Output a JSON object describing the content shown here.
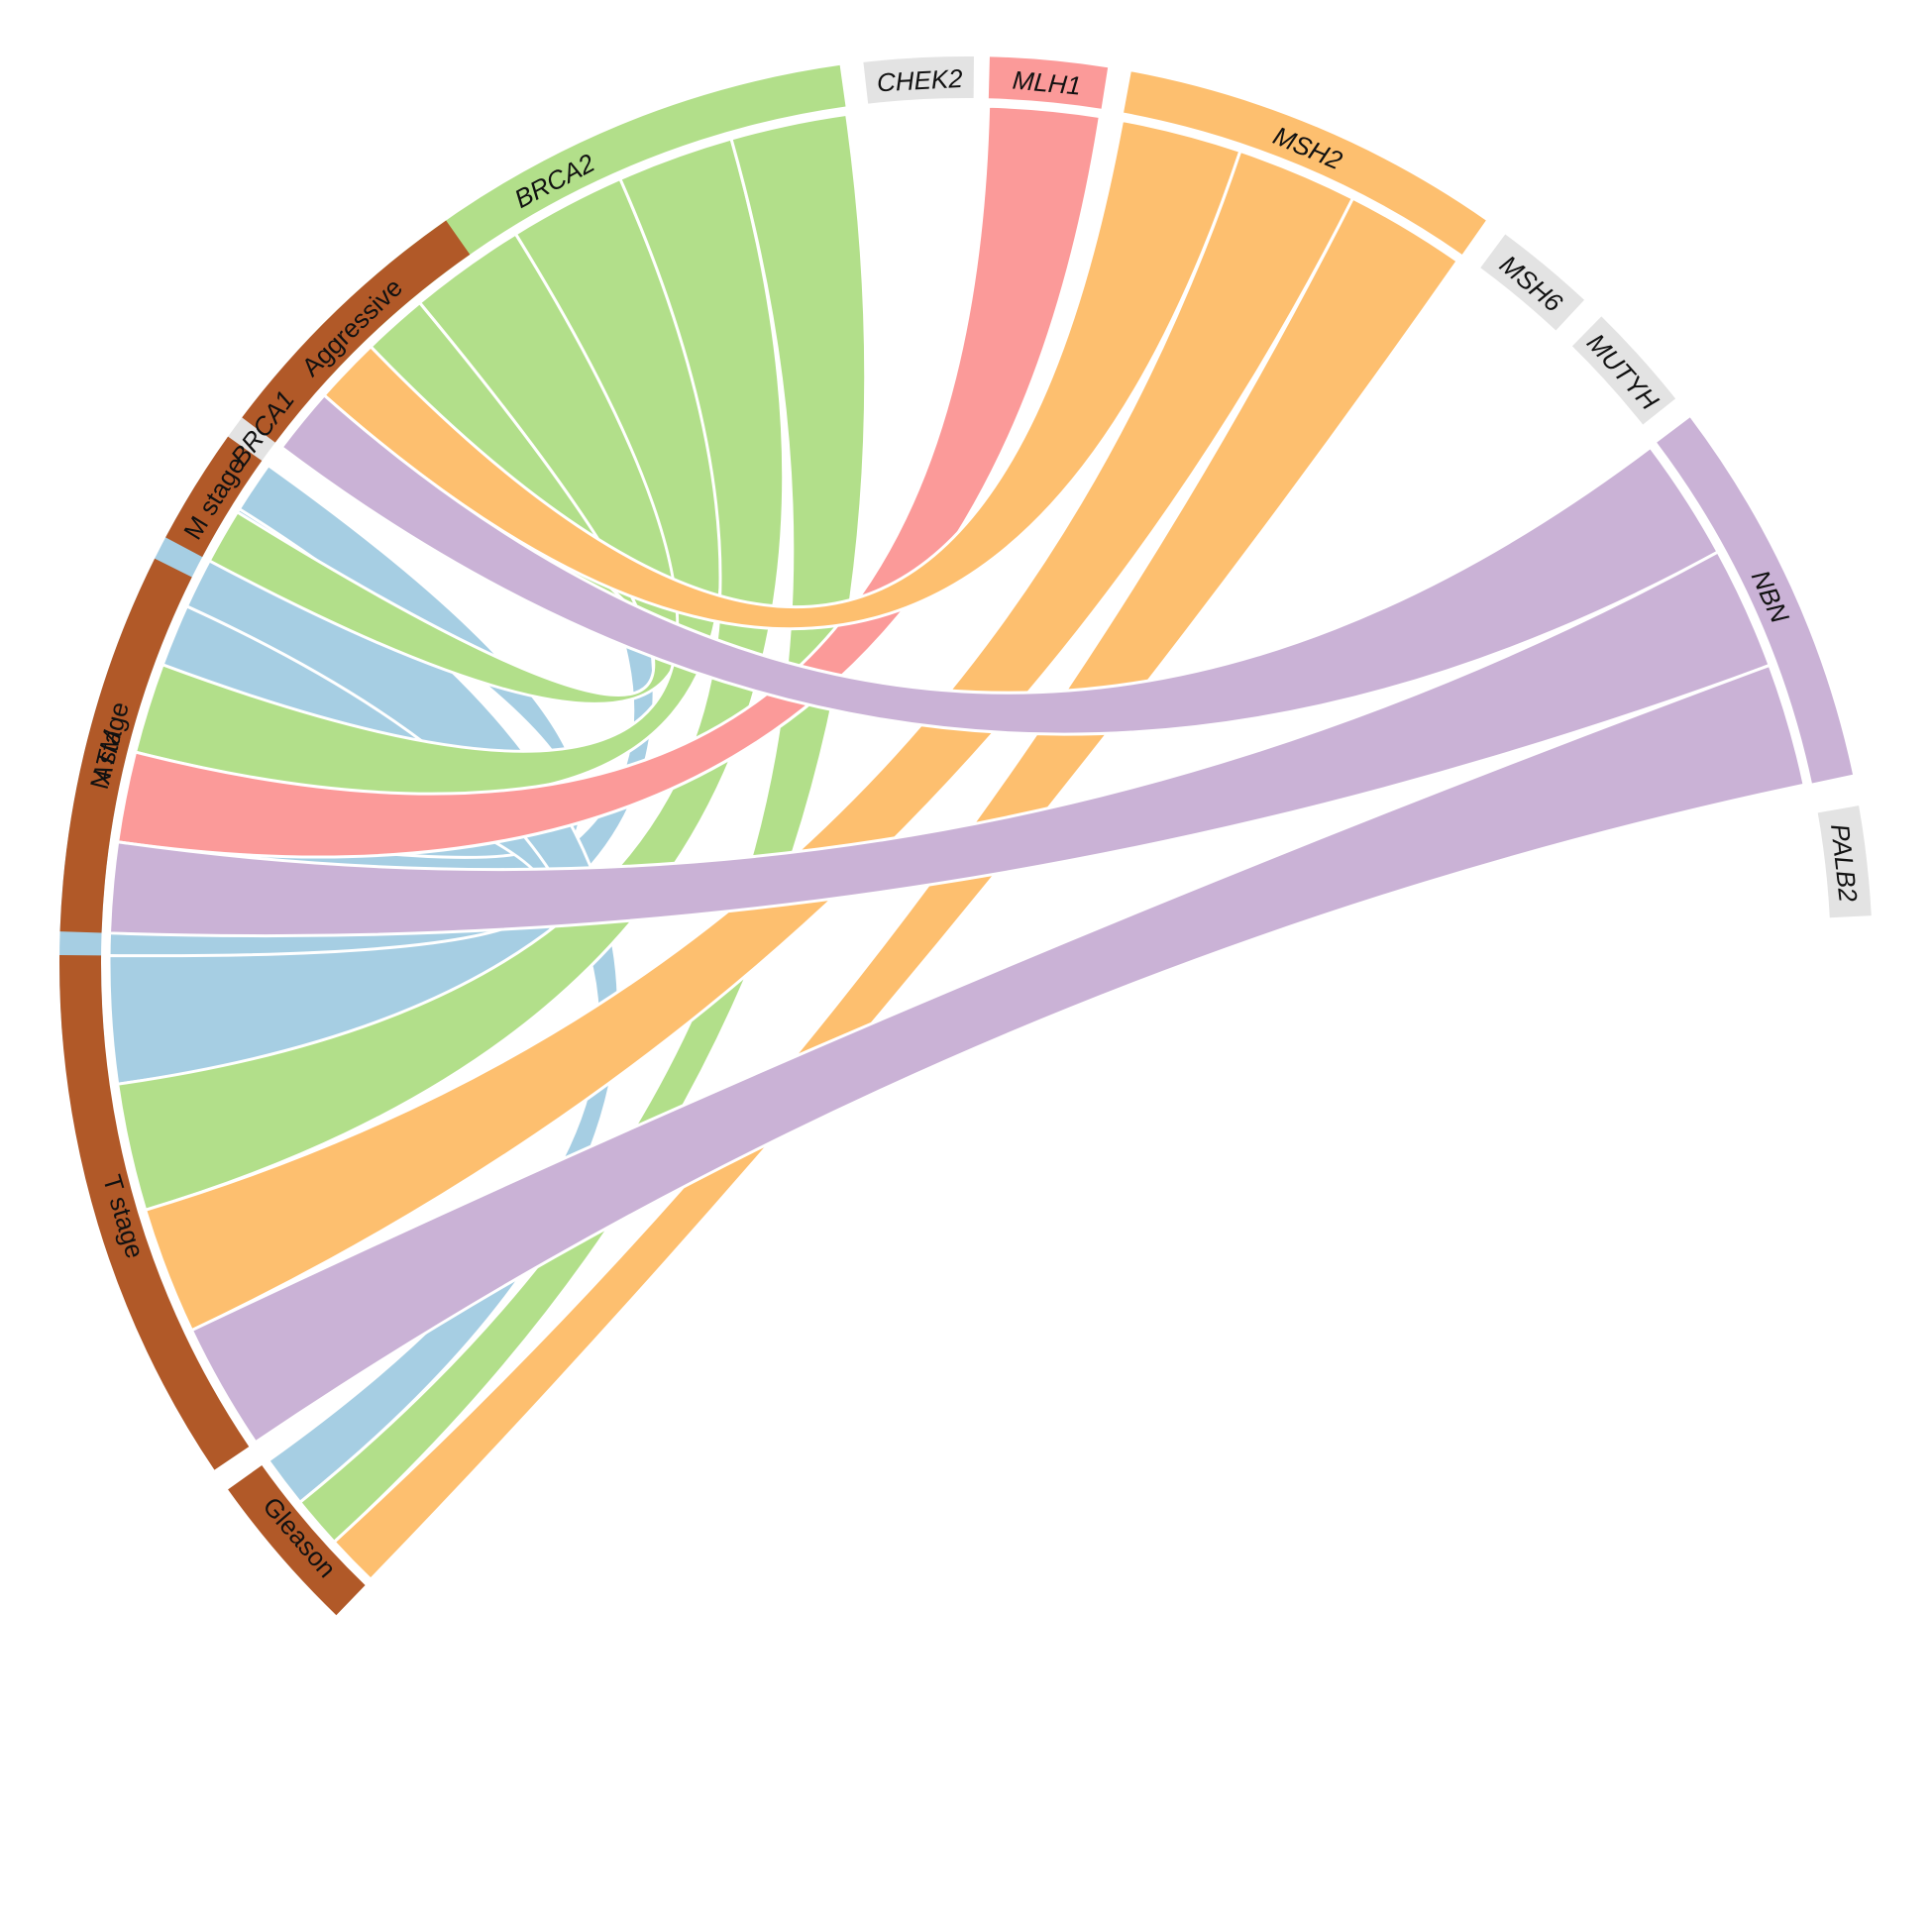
{
  "chart_data": {
    "type": "chord",
    "genes": [
      {
        "name": "ATM",
        "color": "#a6cee3",
        "links": [
          "Aggressive",
          "M stage",
          "N stage",
          "T stage",
          "Gleason"
        ]
      },
      {
        "name": "BRCA1",
        "color": "#e3e3e3",
        "links": []
      },
      {
        "name": "BRCA2",
        "color": "#b2df8a",
        "links": [
          "Aggressive",
          "M stage",
          "N stage",
          "T stage",
          "Gleason"
        ]
      },
      {
        "name": "CHEK2",
        "color": "#e3e3e3",
        "links": []
      },
      {
        "name": "MLH1",
        "color": "#fb9a99",
        "links": [
          "N stage"
        ]
      },
      {
        "name": "MSH2",
        "color": "#fdbf6f",
        "links": [
          "Aggressive",
          "T stage",
          "Gleason"
        ]
      },
      {
        "name": "MSH6",
        "color": "#e3e3e3",
        "links": []
      },
      {
        "name": "MUTYH",
        "color": "#e3e3e3",
        "links": []
      },
      {
        "name": "NBN",
        "color": "#cab2d6",
        "links": [
          "Aggressive",
          "N stage",
          "T stage"
        ]
      },
      {
        "name": "PALB2",
        "color": "#e3e3e3",
        "links": []
      }
    ],
    "outcomes": [
      {
        "name": "Aggressive",
        "color": "#b15928"
      },
      {
        "name": "M stage",
        "color": "#b15928"
      },
      {
        "name": "N stage",
        "color": "#b15928"
      },
      {
        "name": "T stage",
        "color": "#b15928"
      },
      {
        "name": "Gleason",
        "color": "#b15928"
      }
    ]
  }
}
